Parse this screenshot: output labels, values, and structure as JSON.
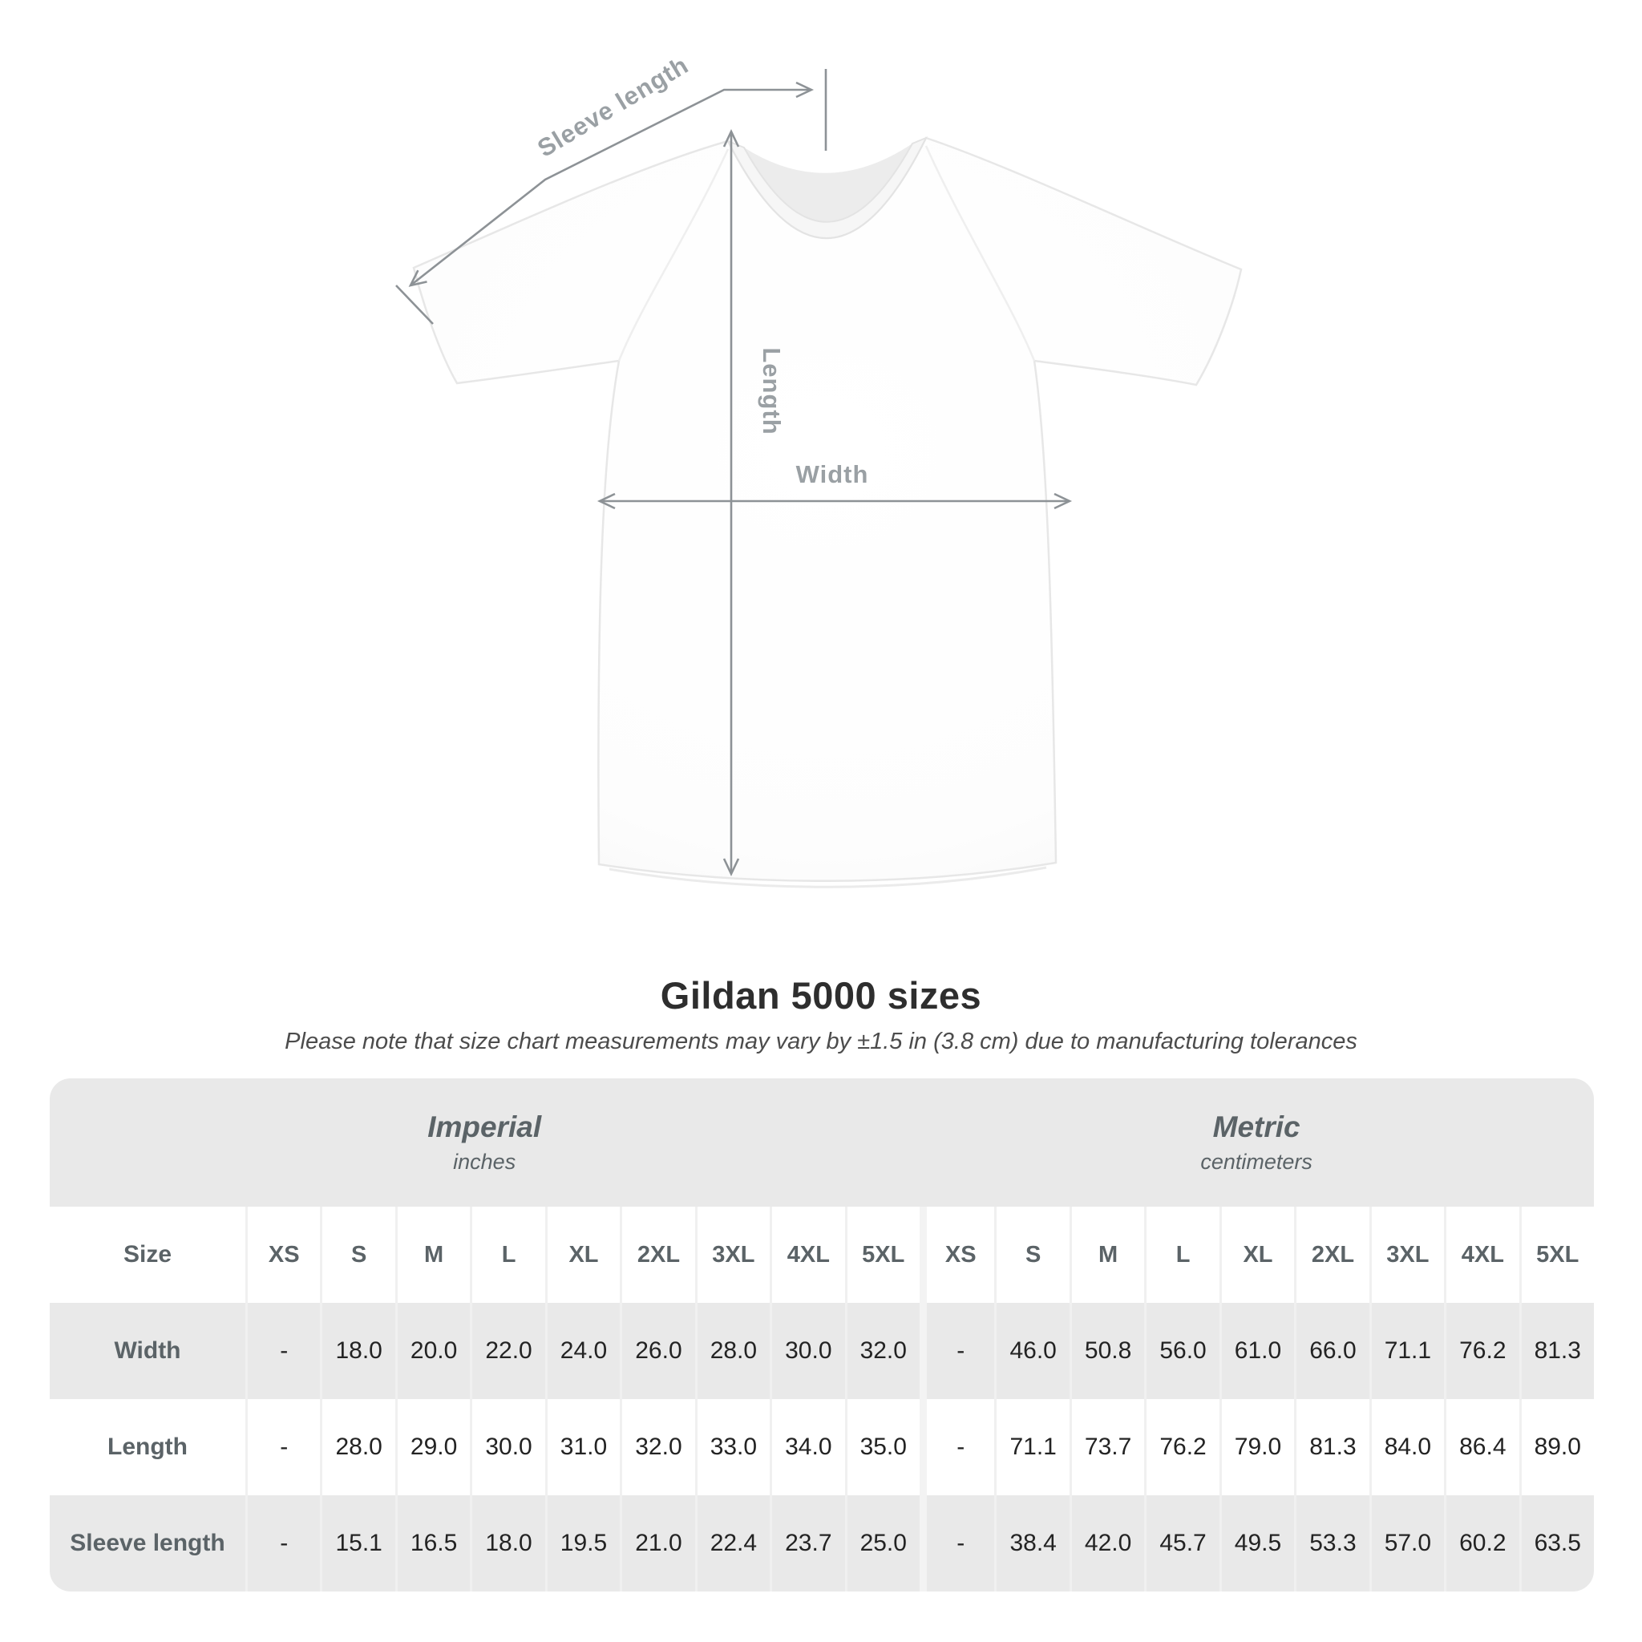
{
  "title": "Gildan 5000 sizes",
  "subtitle": "Please note that size chart measurements may vary by ±1.5 in (3.8 cm) due to manufacturing tolerances",
  "diagram": {
    "sleeve_length_label": "Sleeve length",
    "length_label": "Length",
    "width_label": "Width"
  },
  "colors": {
    "stripe_gray": "#e9e9e9",
    "separator": "#f0f0f0",
    "measure_line": "#8d9296",
    "diagram_label": "#9aa0a4",
    "header_text": "#5b6367",
    "data_text": "#232323"
  },
  "chart_data": {
    "type": "table",
    "title": "Gildan 5000 sizes",
    "note": "Please note that size chart measurements may vary by ±1.5 in (3.8 cm) due to manufacturing tolerances",
    "size_header": "Size",
    "sizes": [
      "XS",
      "S",
      "M",
      "L",
      "XL",
      "2XL",
      "3XL",
      "4XL",
      "5XL"
    ],
    "groups": [
      {
        "label": "Imperial",
        "unit": "inches"
      },
      {
        "label": "Metric",
        "unit": "centimeters"
      }
    ],
    "rows": [
      {
        "label": "Width",
        "imperial": [
          "-",
          "18.0",
          "20.0",
          "22.0",
          "24.0",
          "26.0",
          "28.0",
          "30.0",
          "32.0"
        ],
        "metric": [
          "-",
          "46.0",
          "50.8",
          "56.0",
          "61.0",
          "66.0",
          "71.1",
          "76.2",
          "81.3"
        ]
      },
      {
        "label": "Length",
        "imperial": [
          "-",
          "28.0",
          "29.0",
          "30.0",
          "31.0",
          "32.0",
          "33.0",
          "34.0",
          "35.0"
        ],
        "metric": [
          "-",
          "71.1",
          "73.7",
          "76.2",
          "79.0",
          "81.3",
          "84.0",
          "86.4",
          "89.0"
        ]
      },
      {
        "label": "Sleeve length",
        "imperial": [
          "-",
          "15.1",
          "16.5",
          "18.0",
          "19.5",
          "21.0",
          "22.4",
          "23.7",
          "25.0"
        ],
        "metric": [
          "-",
          "38.4",
          "42.0",
          "45.7",
          "49.5",
          "53.3",
          "57.0",
          "60.2",
          "63.5"
        ]
      }
    ]
  }
}
